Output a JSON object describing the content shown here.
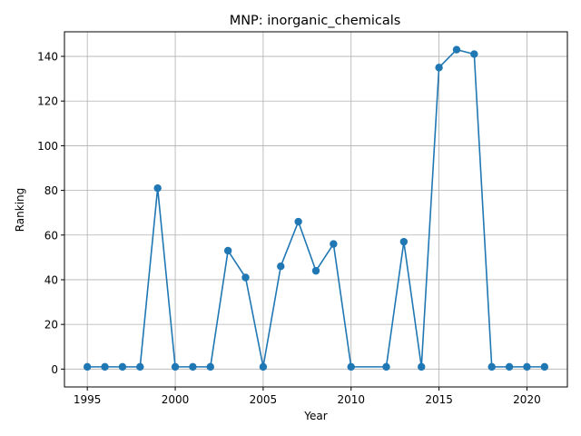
{
  "chart_data": {
    "type": "line",
    "title": "MNP: inorganic_chemicals",
    "xlabel": "Year",
    "ylabel": "Ranking",
    "xlim": [
      1993.7,
      2022.3
    ],
    "ylim": [
      -8,
      151
    ],
    "xticks": [
      1995,
      2000,
      2005,
      2010,
      2015,
      2020
    ],
    "yticks": [
      0,
      20,
      40,
      60,
      80,
      100,
      120,
      140
    ],
    "grid": true,
    "color": "#1f77b4",
    "marker": "circle",
    "series": [
      {
        "x": [
          1995,
          1996,
          1997,
          1998,
          1999,
          2000,
          2001,
          2002,
          2003,
          2004,
          2005,
          2006,
          2007,
          2008,
          2009,
          2010,
          2012,
          2013,
          2014,
          2015,
          2016,
          2017,
          2018,
          2019,
          2020,
          2021
        ],
        "y": [
          1,
          1,
          1,
          1,
          81,
          1,
          1,
          1,
          53,
          41,
          1,
          46,
          66,
          44,
          56,
          1,
          1,
          57,
          1,
          135,
          143,
          141,
          1,
          1,
          1,
          1
        ]
      }
    ]
  }
}
